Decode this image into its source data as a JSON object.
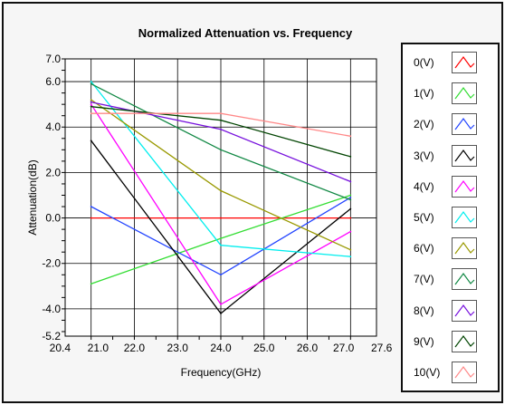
{
  "chart_data": {
    "type": "line",
    "title": "Normalized Attenuation vs. Frequency",
    "xlabel": "Frequency(GHz)",
    "ylabel": "Attenuation(dB)",
    "xlim": [
      20.4,
      27.6
    ],
    "ylim": [
      -5.2,
      7.0
    ],
    "x_ticks": [
      "20.4",
      "21.0",
      "22.0",
      "23.0",
      "24.0",
      "25.0",
      "26.0",
      "27.0",
      "27.6"
    ],
    "y_ticks": [
      "7.0",
      "6.0",
      "4.0",
      "2.0",
      "0.0",
      "-2.0",
      "-4.0",
      "-5.2"
    ],
    "x": [
      21.0,
      24.0,
      27.0
    ],
    "grid": true,
    "legend_position": "right",
    "series": [
      {
        "name": "0(V)",
        "color": "#ff0000",
        "values": [
          0.0,
          0.0,
          0.0
        ]
      },
      {
        "name": "1(V)",
        "color": "#33dd33",
        "values": [
          -2.9,
          -0.9,
          1.0
        ]
      },
      {
        "name": "2(V)",
        "color": "#2244ff",
        "values": [
          0.5,
          -2.5,
          0.9
        ]
      },
      {
        "name": "3(V)",
        "color": "#000000",
        "values": [
          3.4,
          -4.2,
          0.4
        ]
      },
      {
        "name": "4(V)",
        "color": "#ff00ff",
        "values": [
          5.0,
          -3.8,
          -0.6
        ]
      },
      {
        "name": "5(V)",
        "color": "#00eeee",
        "values": [
          6.0,
          -1.2,
          -1.7
        ]
      },
      {
        "name": "6(V)",
        "color": "#999900",
        "values": [
          5.2,
          1.2,
          -1.4
        ]
      },
      {
        "name": "7(V)",
        "color": "#118844",
        "values": [
          5.9,
          3.0,
          0.8
        ]
      },
      {
        "name": "8(V)",
        "color": "#7711dd",
        "values": [
          5.1,
          3.9,
          1.6
        ]
      },
      {
        "name": "9(V)",
        "color": "#004400",
        "values": [
          4.9,
          4.3,
          2.7
        ]
      },
      {
        "name": "10(V)",
        "color": "#ff8888",
        "values": [
          4.6,
          4.6,
          3.6
        ]
      }
    ]
  }
}
